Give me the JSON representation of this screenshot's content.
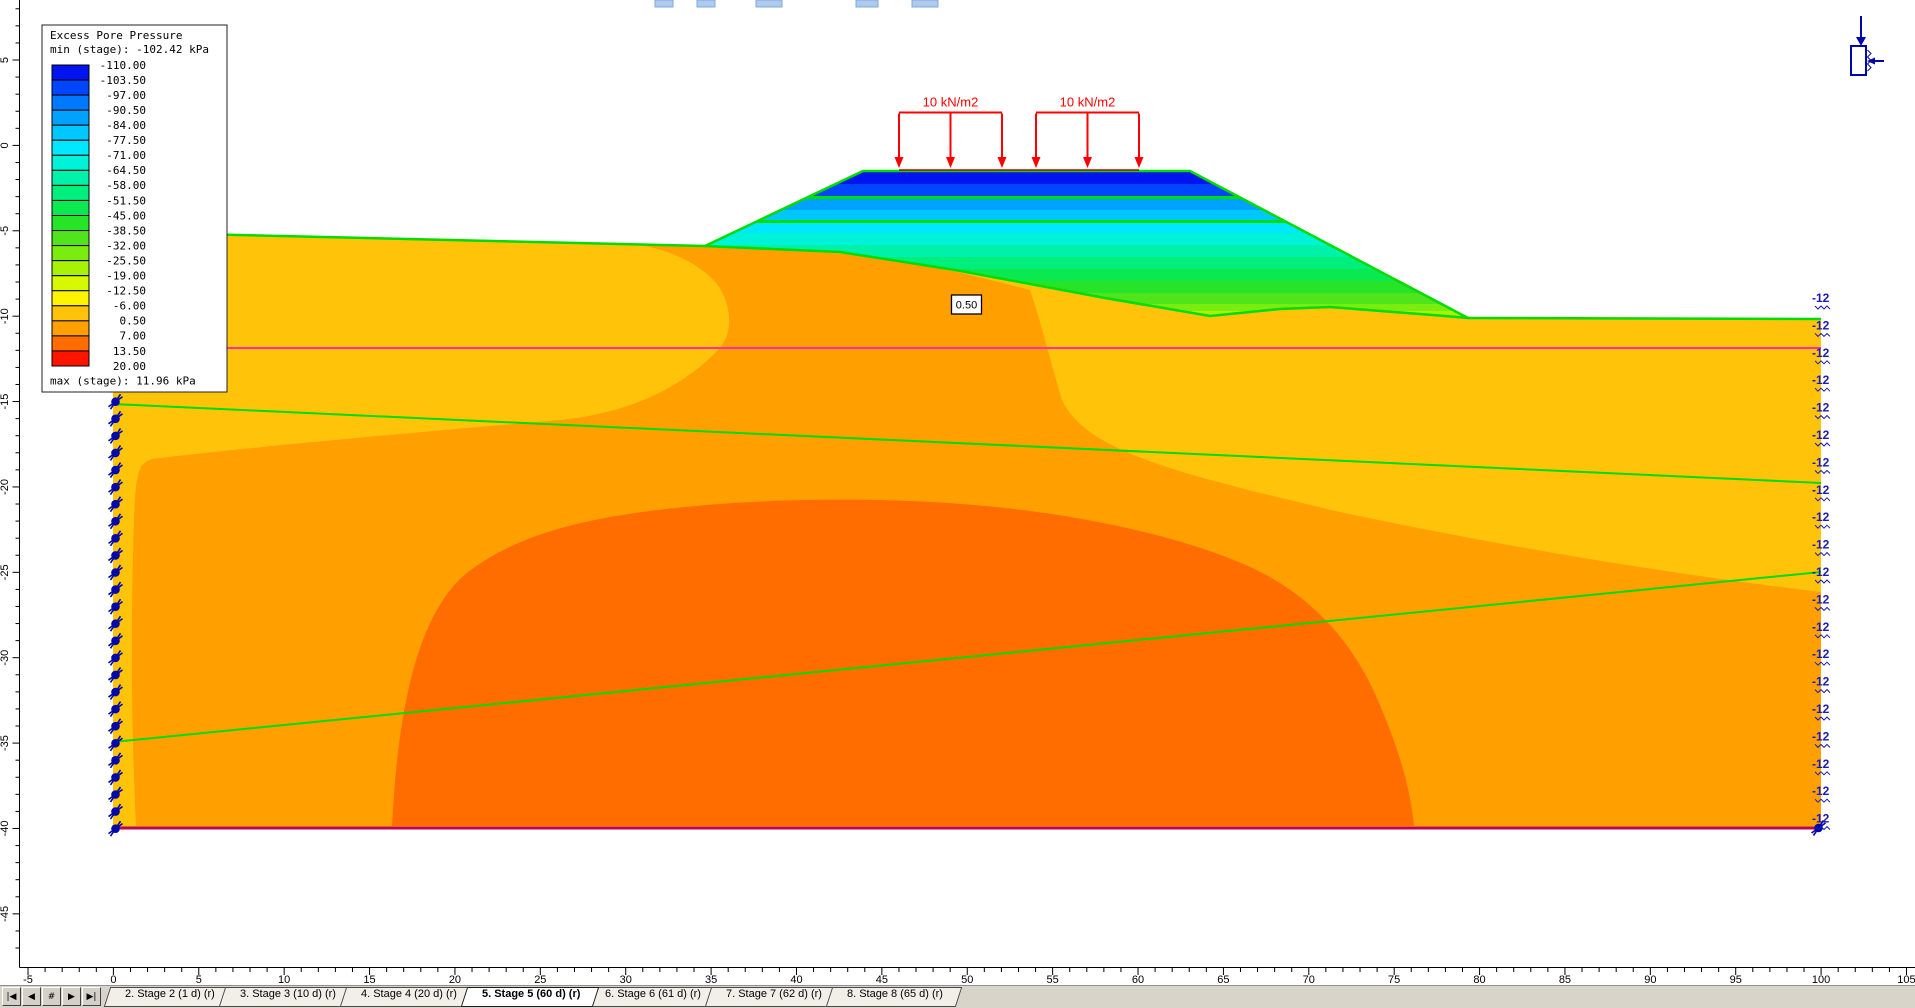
{
  "legend": {
    "title": "Excess Pore Pressure",
    "min_label": "min (stage): -102.42 kPa",
    "max_label": "max (stage): 11.96 kPa",
    "boundaries": [
      "-110.00",
      "-103.50",
      "-97.00",
      "-90.50",
      "-84.00",
      "-77.50",
      "-71.00",
      "-64.50",
      "-58.00",
      "-51.50",
      "-45.00",
      "-38.50",
      "-32.00",
      "-25.50",
      "-19.00",
      "-12.50",
      "-6.00",
      "0.50",
      "7.00",
      "13.50",
      "20.00"
    ],
    "colors": [
      "#0014F0",
      "#0046FF",
      "#0078FF",
      "#00A2FF",
      "#00C8FF",
      "#00E8FF",
      "#00F2D8",
      "#00F2AA",
      "#00EE7C",
      "#0AEA50",
      "#28E428",
      "#4FE41C",
      "#7BEC10",
      "#A8F208",
      "#D6F800",
      "#FFF400",
      "#FFC40A",
      "#FFA000",
      "#FF6D00",
      "#FF1400"
    ]
  },
  "loads": {
    "groups": [
      {
        "label": "10 kN/m2"
      },
      {
        "label": "10 kN/m2"
      }
    ]
  },
  "contour_tag": "0.50",
  "boundary_conditions": {
    "right_label": "-12",
    "right_count": 20
  },
  "rulers": {
    "horizontal": {
      "min": -5,
      "step": 5,
      "labels": [
        "-5",
        "0",
        "5",
        "10",
        "15",
        "20",
        "25",
        "30",
        "35",
        "40",
        "45",
        "50",
        "55",
        "60",
        "65",
        "70",
        "75",
        "80",
        "85",
        "90",
        "95",
        "100",
        "105"
      ]
    },
    "vertical": {
      "max": 5,
      "step": -5,
      "labels": [
        "5",
        "0",
        "-5",
        "-10",
        "-15",
        "-20",
        "-25",
        "-30",
        "-35",
        "-40",
        "-45"
      ]
    }
  },
  "model": {
    "colors": {
      "band_amber": "#FFC40A",
      "band_orange": "#FFA000",
      "band_deep_orange": "#FF6D00",
      "boundary_green": "#00DD00",
      "water_line_magenta": "#FF2FA8",
      "base_line": "#C00050",
      "marker_navy": "#0008A8",
      "load_red": "#FF0000"
    }
  },
  "tabbar": {
    "nav": [
      "|◀",
      "◀",
      "#",
      "▶",
      "▶|"
    ],
    "nav_names": [
      "tab-scroll-first",
      "tab-scroll-prev",
      "tab-list",
      "tab-scroll-next",
      "tab-scroll-last"
    ],
    "tabs": [
      {
        "label": "2. Stage 2 (1 d) (r)",
        "active": false
      },
      {
        "label": "3. Stage 3 (10 d) (r)",
        "active": false
      },
      {
        "label": "4. Stage 4 (20 d) (r)",
        "active": false
      },
      {
        "label": "5. Stage 5 (60 d) (r)",
        "active": true
      },
      {
        "label": "6. Stage 6 (61 d) (r)",
        "active": false
      },
      {
        "label": "7. Stage 7 (62 d) (r)",
        "active": false
      },
      {
        "label": "8. Stage 8 (65 d) (r)",
        "active": false
      }
    ]
  }
}
